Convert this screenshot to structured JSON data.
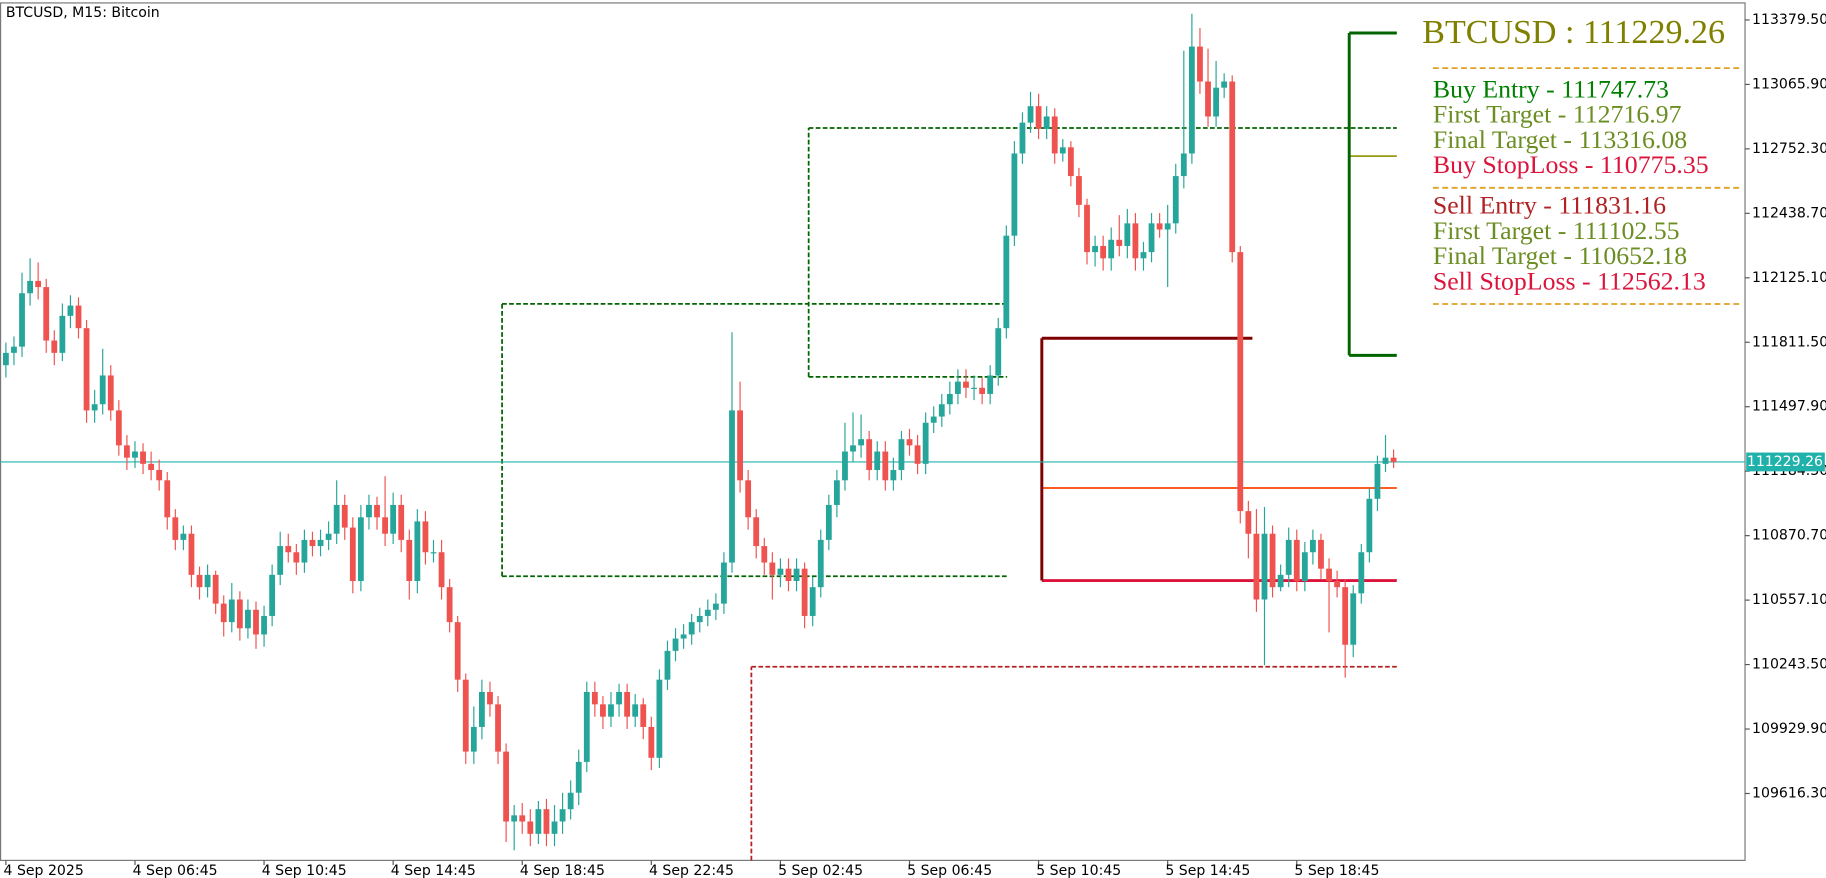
{
  "chart_data": {
    "type": "candlestick",
    "title": "BTCUSD, M15:  Bitcoin",
    "bull_color": "#26a69a",
    "bear_color": "#ef5350",
    "xlim": [
      -0.73,
      215.56
    ],
    "ylim": [
      109290.8,
      113476.6
    ],
    "xticks": [
      {
        "value": 0,
        "label": "4 Sep 2025"
      },
      {
        "value": 16,
        "label": "4 Sep 06:45"
      },
      {
        "value": 32,
        "label": "4 Sep 10:45"
      },
      {
        "value": 48,
        "label": "4 Sep 14:45"
      },
      {
        "value": 64,
        "label": "4 Sep 18:45"
      },
      {
        "value": 80,
        "label": "4 Sep 22:45"
      },
      {
        "value": 96,
        "label": "5 Sep 02:45"
      },
      {
        "value": 112,
        "label": "5 Sep 06:45"
      },
      {
        "value": 128,
        "label": "5 Sep 10:45"
      },
      {
        "value": 144,
        "label": "5 Sep 14:45"
      },
      {
        "value": 160,
        "label": "5 Sep 18:45"
      }
    ],
    "yticks": [
      {
        "value": 113379.5,
        "label": "113379.50"
      },
      {
        "value": 113065.9,
        "label": "113065.90"
      },
      {
        "value": 112752.3,
        "label": "112752.30"
      },
      {
        "value": 112438.7,
        "label": "112438.70"
      },
      {
        "value": 112125.1,
        "label": "112125.10"
      },
      {
        "value": 111811.5,
        "label": "111811.50"
      },
      {
        "value": 111497.9,
        "label": "111497.90"
      },
      {
        "value": 111184.3,
        "label": "111184.30"
      },
      {
        "value": 110870.7,
        "label": "110870.70"
      },
      {
        "value": 110557.1,
        "label": "110557.10"
      },
      {
        "value": 110243.5,
        "label": "110243.50"
      },
      {
        "value": 109929.9,
        "label": "109929.90"
      },
      {
        "value": 109616.3,
        "label": "109616.30"
      }
    ],
    "open": [
      111700,
      111760,
      111790,
      112050,
      112110,
      112080,
      111820,
      111760,
      111940,
      111990,
      111880,
      111480,
      111510,
      111650,
      111480,
      111310,
      111250,
      111280,
      111220,
      111190,
      111140,
      110960,
      110850,
      110880,
      110680,
      110620,
      110680,
      110540,
      110450,
      110560,
      110420,
      110510,
      110390,
      110480,
      110680,
      110820,
      110790,
      110740,
      110850,
      110820,
      110850,
      110880,
      111020,
      110910,
      110650,
      110960,
      111020,
      110960,
      110880,
      111020,
      110850,
      110650,
      110940,
      110790,
      110790,
      110620,
      110450,
      110170,
      109820,
      109940,
      110110,
      110050,
      109820,
      109480,
      109510,
      109480,
      109420,
      109540,
      109420,
      109480,
      109540,
      109620,
      109770,
      110110,
      110050,
      109990,
      110050,
      110110,
      109990,
      110050,
      109940,
      109790,
      110170,
      110310,
      110370,
      110390,
      110450,
      110480,
      110510,
      110540,
      110740,
      111480,
      111140,
      110960,
      110820,
      110740,
      110680,
      110710,
      110650,
      110710,
      110480,
      110620,
      110850,
      111020,
      111140,
      111280,
      111310,
      111340,
      111190,
      111280,
      111140,
      111190,
      111340,
      111310,
      111220,
      111420,
      111450,
      111510,
      111560,
      111620,
      111590,
      111590,
      111560,
      111650,
      111880,
      112330,
      112730,
      112880,
      112960,
      112850,
      112910,
      112730,
      112760,
      112620,
      112480,
      112250,
      112280,
      112220,
      112310,
      112280,
      112390,
      112220,
      112250,
      112390,
      112360,
      112390,
      112620,
      112730,
      113250,
      113080,
      112910,
      113050,
      113080,
      112250,
      110990,
      110880,
      110560,
      110880,
      110620,
      110680,
      110850,
      110650,
      110790,
      110850,
      110710,
      110650,
      110620,
      110340,
      110590,
      110790,
      111050,
      111220,
      111250
    ],
    "high": [
      111810,
      111840,
      112150,
      112220,
      112200,
      112120,
      111870,
      112000,
      112040,
      112030,
      111920,
      111580,
      111780,
      111700,
      111530,
      111360,
      111330,
      111320,
      111280,
      111240,
      111180,
      111000,
      110920,
      110920,
      110720,
      110730,
      110700,
      110580,
      110640,
      110600,
      110560,
      110550,
      110530,
      110730,
      110890,
      110880,
      110830,
      110900,
      110890,
      110900,
      110940,
      111140,
      111070,
      110960,
      111020,
      111070,
      111060,
      111160,
      111080,
      111070,
      110900,
      111000,
      110990,
      110850,
      110850,
      110660,
      110480,
      110200,
      110040,
      110170,
      110160,
      110090,
      109860,
      109560,
      109570,
      109540,
      109580,
      109590,
      109560,
      109620,
      109680,
      109830,
      110160,
      110160,
      110090,
      110110,
      110150,
      110150,
      110100,
      110080,
      109990,
      110220,
      110360,
      110420,
      110440,
      110490,
      110520,
      110560,
      110590,
      110790,
      111860,
      111620,
      111190,
      111000,
      110860,
      110790,
      110760,
      110760,
      110760,
      110740,
      110670,
      110900,
      111070,
      111190,
      111420,
      111470,
      111460,
      111380,
      111330,
      111330,
      111250,
      111380,
      111390,
      111360,
      111470,
      111500,
      111560,
      111620,
      111680,
      111680,
      111650,
      111640,
      111700,
      111930,
      112380,
      112790,
      112930,
      113030,
      113020,
      112960,
      112950,
      112800,
      112790,
      112660,
      112510,
      112330,
      112330,
      112370,
      112430,
      112460,
      112440,
      112300,
      112440,
      112440,
      112480,
      112680,
      113230,
      113410,
      113340,
      113240,
      113180,
      113120,
      113110,
      112280,
      111040,
      111000,
      111010,
      110920,
      110730,
      110910,
      110900,
      110840,
      110900,
      110880,
      110760,
      110700,
      110660,
      110630,
      110830,
      111100,
      111260,
      111360,
      111290
    ],
    "low": [
      111640,
      111700,
      111740,
      111990,
      112020,
      111760,
      111700,
      111720,
      111880,
      111830,
      111420,
      111420,
      111460,
      111430,
      111260,
      111190,
      111200,
      111170,
      111140,
      111090,
      110900,
      110800,
      110800,
      110620,
      110560,
      110570,
      110490,
      110380,
      110400,
      110360,
      110370,
      110320,
      110330,
      110430,
      110630,
      110740,
      110680,
      110690,
      110770,
      110770,
      110800,
      110830,
      110850,
      110590,
      110600,
      110900,
      110900,
      110820,
      110830,
      110790,
      110560,
      110590,
      110730,
      110740,
      110560,
      110400,
      110110,
      109760,
      109760,
      109880,
      109990,
      109760,
      109380,
      109340,
      109420,
      109360,
      109370,
      109360,
      109360,
      109420,
      109490,
      109560,
      109720,
      109990,
      109930,
      109940,
      109990,
      109930,
      109940,
      109880,
      109730,
      109740,
      110120,
      110260,
      110320,
      110340,
      110400,
      110430,
      110460,
      110490,
      110690,
      111080,
      110900,
      110760,
      110680,
      110560,
      110620,
      110600,
      110600,
      110420,
      110430,
      110570,
      110800,
      110960,
      111090,
      111230,
      111250,
      111140,
      111140,
      111090,
      111090,
      111140,
      111260,
      111170,
      111170,
      111370,
      111400,
      111460,
      111510,
      111540,
      111530,
      111510,
      111510,
      111600,
      111830,
      112280,
      112680,
      112830,
      112800,
      112800,
      112680,
      112690,
      112570,
      112420,
      112190,
      112180,
      112160,
      112160,
      112230,
      112220,
      112160,
      112160,
      112200,
      112320,
      112080,
      112340,
      112560,
      112680,
      113020,
      112860,
      112860,
      113000,
      112200,
      110930,
      110760,
      110500,
      110240,
      110570,
      110600,
      110620,
      110600,
      110600,
      110730,
      110660,
      110400,
      110570,
      110180,
      110280,
      110540,
      110740,
      110990,
      111180,
      111200
    ],
    "close": [
      111760,
      111790,
      112050,
      112110,
      112080,
      111820,
      111760,
      111940,
      111990,
      111880,
      111480,
      111510,
      111650,
      111480,
      111310,
      111250,
      111280,
      111220,
      111190,
      111140,
      110960,
      110850,
      110880,
      110680,
      110620,
      110680,
      110540,
      110450,
      110560,
      110420,
      110510,
      110390,
      110480,
      110680,
      110820,
      110790,
      110740,
      110850,
      110820,
      110850,
      110880,
      111020,
      110910,
      110650,
      110960,
      111020,
      110960,
      110880,
      111020,
      110850,
      110650,
      110940,
      110790,
      110790,
      110620,
      110450,
      110170,
      109820,
      109940,
      110110,
      110050,
      109820,
      109480,
      109510,
      109480,
      109420,
      109540,
      109420,
      109480,
      109540,
      109620,
      109770,
      110110,
      110050,
      109990,
      110050,
      110110,
      109990,
      110050,
      109940,
      109790,
      110170,
      110310,
      110370,
      110390,
      110450,
      110480,
      110510,
      110540,
      110740,
      111480,
      111140,
      110960,
      110820,
      110740,
      110680,
      110710,
      110650,
      110710,
      110480,
      110620,
      110850,
      111020,
      111140,
      111280,
      111310,
      111340,
      111190,
      111280,
      111140,
      111190,
      111340,
      111310,
      111220,
      111420,
      111450,
      111510,
      111560,
      111620,
      111590,
      111590,
      111560,
      111650,
      111880,
      112330,
      112730,
      112880,
      112960,
      112850,
      112910,
      112730,
      112760,
      112620,
      112480,
      112250,
      112280,
      112220,
      112310,
      112280,
      112390,
      112220,
      112250,
      112390,
      112360,
      112390,
      112620,
      112730,
      113250,
      113080,
      112910,
      113050,
      113080,
      112250,
      110990,
      110880,
      110560,
      110880,
      110620,
      110680,
      110850,
      110650,
      110790,
      110850,
      110710,
      110650,
      110620,
      110340,
      110590,
      110790,
      111050,
      111220,
      111250,
      111229.26
    ],
    "current_price": 111229.26,
    "current_price_color": "#20b2aa",
    "lines": [
      {
        "y": 111998,
        "x": [
          61.5,
          124.1
        ],
        "color": "#006400",
        "dash": true,
        "width": 1.5
      },
      {
        "y": 110673,
        "x": [
          61.5,
          124.1
        ],
        "color": "#006400",
        "dash": true,
        "width": 1.5
      },
      {
        "y": 112854,
        "x": [
          99.5,
          172.4
        ],
        "color": "#006400",
        "dash": true,
        "width": 1.5
      },
      {
        "y": 111643,
        "x": [
          99.5,
          124.1
        ],
        "color": "#006400",
        "dash": true,
        "width": 1.5
      },
      {
        "y": 110233,
        "x": [
          92.4,
          172.4
        ],
        "color": "#b22222",
        "dash": true,
        "width": 1.5
      },
      {
        "y": 111831.16,
        "x": [
          128.4,
          154.5
        ],
        "color": "#800000",
        "dash": false,
        "width": 2.5
      },
      {
        "y": 111102.55,
        "x": [
          128.4,
          172.4
        ],
        "color": "#ff4500",
        "dash": false,
        "width": 1.5
      },
      {
        "y": 110652.18,
        "x": [
          128.4,
          172.4
        ],
        "color": "#dc143c",
        "dash": false,
        "width": 2.5
      },
      {
        "y": 113316.08,
        "x": [
          166.5,
          172.4
        ],
        "color": "#006400",
        "dash": false,
        "width": 2.5
      },
      {
        "y": 111747.73,
        "x": [
          166.5,
          172.4
        ],
        "color": "#006400",
        "dash": false,
        "width": 2.5
      },
      {
        "y": 112716.97,
        "x": [
          166.5,
          172.4
        ],
        "color": "#9a9a10",
        "dash": false,
        "width": 1.5
      }
    ],
    "vlines": [
      {
        "x": 61.5,
        "y": [
          110673,
          111998
        ],
        "color": "#006400",
        "dash": true,
        "width": 1.5
      },
      {
        "x": 99.5,
        "y": [
          111643,
          112854
        ],
        "color": "#006400",
        "dash": true,
        "width": 1.5
      },
      {
        "x": 92.4,
        "y": [
          109290.8,
          110233
        ],
        "color": "#b22222",
        "dash": true,
        "width": 1.5
      },
      {
        "x": 128.4,
        "y": [
          110652.18,
          111831.16
        ],
        "color": "#800000",
        "dash": false,
        "width": 2.5
      },
      {
        "x": 166.5,
        "y": [
          111747.73,
          113316.08
        ],
        "color": "#006400",
        "dash": false,
        "width": 2.5
      }
    ],
    "panel": {
      "heading": {
        "text": "BTCUSD : 111229.26",
        "value": 111229.26,
        "color": "#808000"
      },
      "separator_color": "#e0a020",
      "buy": [
        {
          "text": "Buy Entry - 111747.73",
          "value": 111747.73,
          "color": "#008000"
        },
        {
          "text": "First Target - 112716.97",
          "value": 112716.97,
          "color": "#6b8e23"
        },
        {
          "text": "Final Target - 113316.08",
          "value": 113316.08,
          "color": "#6b8e23"
        },
        {
          "text": "Buy StopLoss - 110775.35",
          "value": 110775.35,
          "color": "#dc143c"
        }
      ],
      "sell": [
        {
          "text": "Sell Entry - 111831.16",
          "value": 111831.16,
          "color": "#b22222"
        },
        {
          "text": "First Target - 111102.55",
          "value": 111102.55,
          "color": "#6b8e23"
        },
        {
          "text": "Final Target - 110652.18",
          "value": 110652.18,
          "color": "#6b8e23"
        },
        {
          "text": "Sell StopLoss - 112562.13",
          "value": 112562.13,
          "color": "#dc143c"
        }
      ]
    }
  }
}
